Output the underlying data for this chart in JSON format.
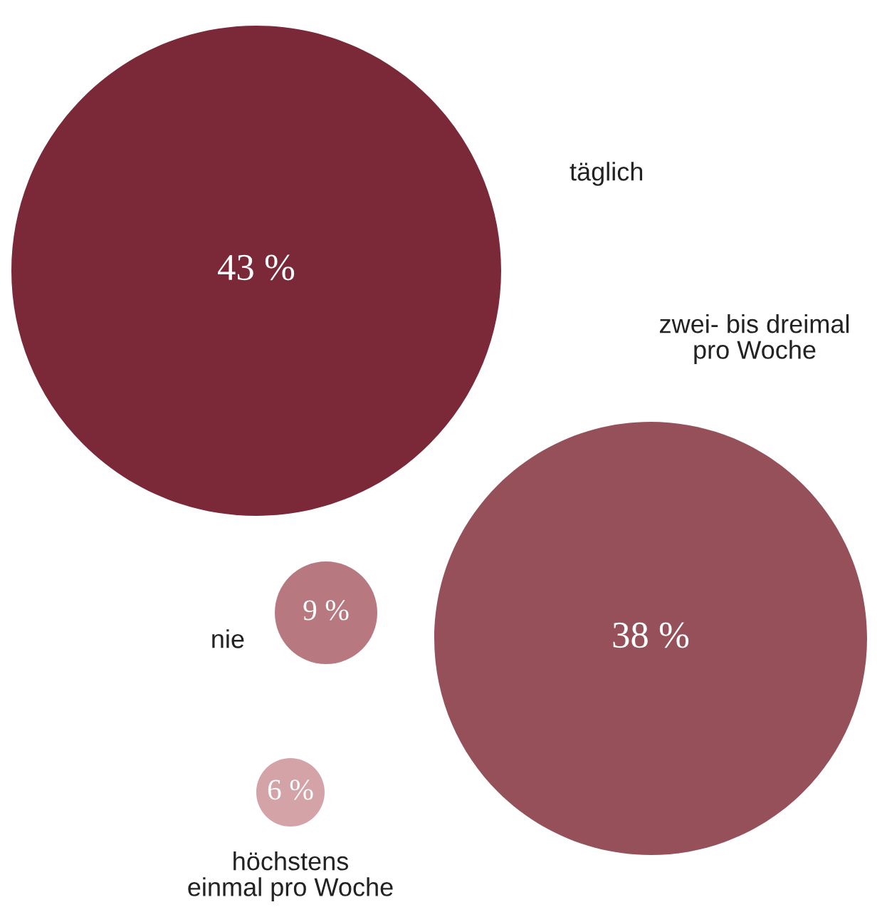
{
  "chart_data": {
    "type": "other",
    "categories": [
      "täglich",
      "zwei- bis dreimal\npro Woche",
      "nie",
      "höchstens\neinmal pro Woche"
    ],
    "values": [
      43,
      38,
      9,
      6
    ],
    "value_labels": [
      "43 %",
      "38 %",
      "9 %",
      "6 %"
    ],
    "colors": [
      "#7b2838",
      "#96505a",
      "#b87880",
      "#d3a3a8"
    ]
  }
}
